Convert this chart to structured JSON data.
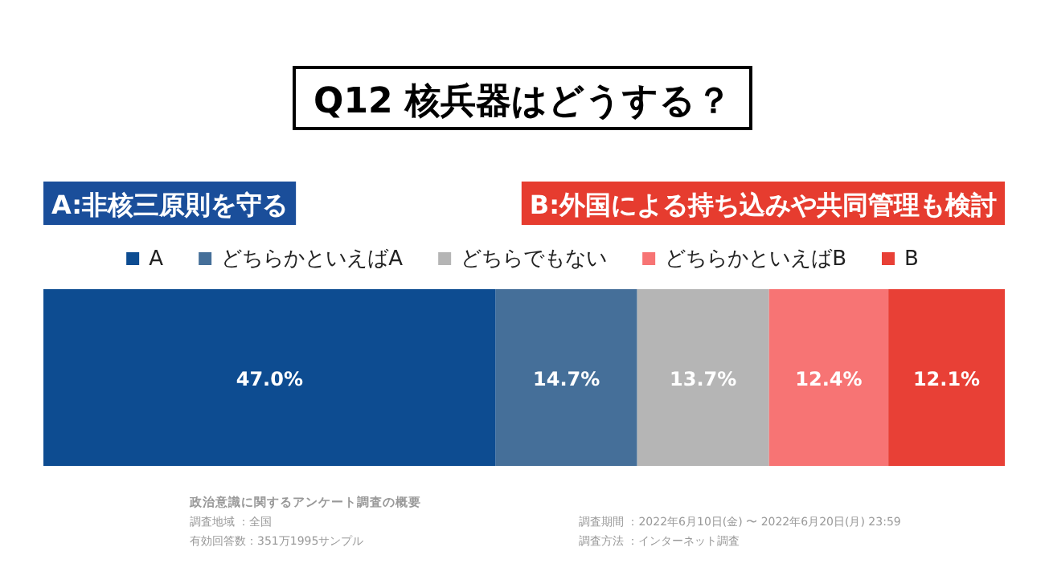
{
  "chart_data": {
    "type": "bar",
    "orientation": "horizontal",
    "stacked": true,
    "title": "Q12 核兵器はどうする？",
    "categories": [
      null
    ],
    "series": [
      {
        "name": "A",
        "color": "#0d4c91",
        "values": [
          47.0
        ],
        "value_labels": [
          "47.0%"
        ]
      },
      {
        "name": "どちらかといえばA",
        "color": "#456f99",
        "values": [
          14.7
        ],
        "value_labels": [
          "14.7%"
        ]
      },
      {
        "name": "どちらでもない",
        "color": "#b5b5b5",
        "values": [
          13.7
        ],
        "value_labels": [
          "13.7%"
        ]
      },
      {
        "name": "どちらかといえばB",
        "color": "#f77474",
        "values": [
          12.4
        ],
        "value_labels": [
          "12.4%"
        ]
      },
      {
        "name": "B",
        "color": "#e84036",
        "values": [
          12.1
        ],
        "value_labels": [
          "12.1%"
        ]
      }
    ],
    "legend": "top",
    "marker": "square",
    "annotations": [
      "A:非核三原則を守る",
      "B:外国による持ち込みや共同管理も検討",
      "政治意識に関するアンケート調査の概要",
      "調査地域 ：全国",
      "有効回答数：351万1995サンプル",
      "調査期間 ：2022年6月10日(金) 〜 2022年6月20日(月) 23:59",
      "調査方法 ：インターネット調査"
    ]
  }
}
